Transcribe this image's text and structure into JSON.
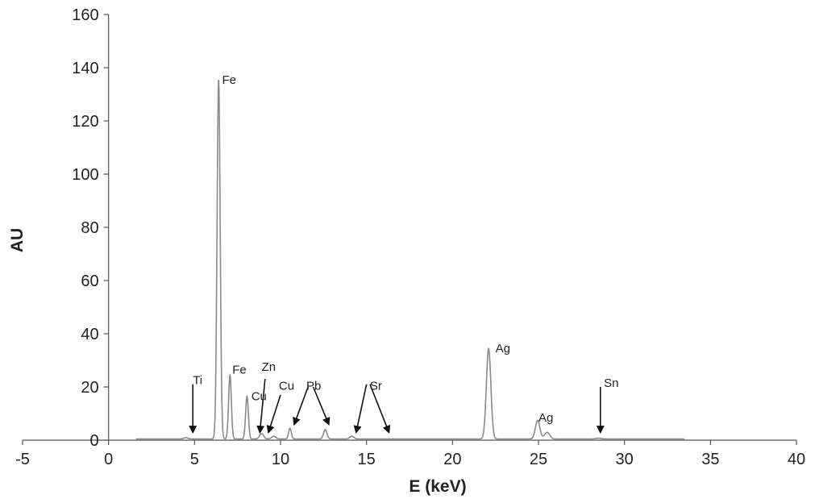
{
  "chart_data": {
    "type": "line",
    "title": "",
    "xlabel": "E (keV)",
    "ylabel": "AU",
    "xlim": [
      -5,
      40
    ],
    "ylim": [
      0,
      160
    ],
    "x_ticks": [
      -5,
      0,
      5,
      10,
      15,
      20,
      25,
      30,
      35,
      40
    ],
    "y_ticks": [
      0,
      20,
      40,
      60,
      80,
      100,
      120,
      140,
      160
    ],
    "grid": false,
    "legend": "none",
    "line_color": "#8a8a8a",
    "peaks": [
      {
        "x": 4.5,
        "height": 0.5,
        "width": 0.12
      },
      {
        "x": 6.4,
        "height": 135,
        "width": 0.09
      },
      {
        "x": 7.06,
        "height": 24,
        "width": 0.08
      },
      {
        "x": 8.05,
        "height": 16,
        "width": 0.08
      },
      {
        "x": 8.9,
        "height": 2,
        "width": 0.12
      },
      {
        "x": 9.6,
        "height": 1,
        "width": 0.12
      },
      {
        "x": 10.55,
        "height": 4,
        "width": 0.08
      },
      {
        "x": 12.6,
        "height": 3.5,
        "width": 0.1
      },
      {
        "x": 14.15,
        "height": 1,
        "width": 0.12
      },
      {
        "x": 22.1,
        "height": 34,
        "width": 0.13
      },
      {
        "x": 24.95,
        "height": 7,
        "width": 0.13
      },
      {
        "x": 25.5,
        "height": 2.5,
        "width": 0.15
      },
      {
        "x": 28.5,
        "height": 0.3,
        "width": 0.15
      }
    ],
    "annotations": [
      {
        "text": "Fe",
        "x": 6.6,
        "y": 134
      },
      {
        "text": "Ti",
        "x": 4.9,
        "y": 21
      },
      {
        "text": "Fe",
        "x": 7.2,
        "y": 25
      },
      {
        "text": "Zn",
        "x": 8.9,
        "y": 26
      },
      {
        "text": "Cu",
        "x": 8.3,
        "y": 15
      },
      {
        "text": "Cu",
        "x": 9.9,
        "y": 19
      },
      {
        "text": "Pb",
        "x": 11.5,
        "y": 19
      },
      {
        "text": "Sr",
        "x": 15.2,
        "y": 19
      },
      {
        "text": "Ag",
        "x": 22.5,
        "y": 33
      },
      {
        "text": "Ag",
        "x": 25.0,
        "y": 7
      },
      {
        "text": "Sn",
        "x": 28.8,
        "y": 20
      }
    ],
    "arrows": [
      {
        "from": [
          4.9,
          21
        ],
        "to": [
          4.9,
          3
        ]
      },
      {
        "from": [
          9.1,
          23
        ],
        "to": [
          8.8,
          3
        ]
      },
      {
        "from": [
          10.0,
          17
        ],
        "to": [
          9.3,
          3
        ]
      },
      {
        "from": [
          11.6,
          20
        ],
        "to": [
          10.8,
          6
        ]
      },
      {
        "from": [
          11.9,
          20
        ],
        "to": [
          12.8,
          6
        ]
      },
      {
        "from": [
          15.0,
          21
        ],
        "to": [
          14.4,
          3
        ]
      },
      {
        "from": [
          15.2,
          21
        ],
        "to": [
          16.3,
          3
        ]
      },
      {
        "from": [
          28.6,
          20
        ],
        "to": [
          28.6,
          3
        ]
      }
    ]
  }
}
